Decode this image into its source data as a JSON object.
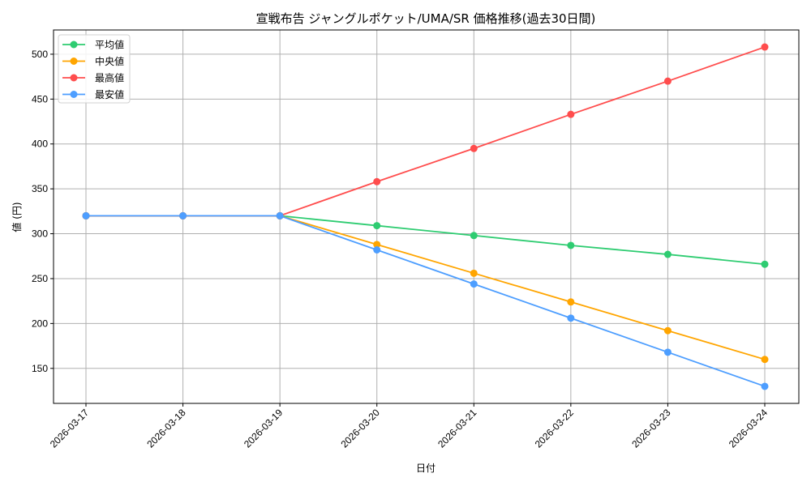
{
  "chart_data": {
    "type": "line",
    "title": "宣戦布告 ジャングルポケット/UMA/SR 価格推移(過去30日間)",
    "xlabel": "日付",
    "ylabel": "値 (円)",
    "x": [
      "2026-03-17",
      "2026-03-18",
      "2026-03-19",
      "2026-03-20",
      "2026-03-21",
      "2026-03-22",
      "2026-03-23",
      "2026-03-24"
    ],
    "series": [
      {
        "name": "平均値",
        "color": "#2ecc71",
        "values": [
          320,
          320,
          320,
          309,
          298,
          287,
          277,
          266
        ]
      },
      {
        "name": "中央値",
        "color": "#ffa500",
        "values": [
          320,
          320,
          320,
          288,
          256,
          224,
          192,
          160
        ]
      },
      {
        "name": "最高値",
        "color": "#ff4d4d",
        "values": [
          320,
          320,
          320,
          358,
          395,
          433,
          470,
          508
        ]
      },
      {
        "name": "最安値",
        "color": "#4d9eff",
        "values": [
          320,
          320,
          320,
          282,
          244,
          206,
          168,
          130
        ]
      }
    ],
    "yticks": [
      150,
      200,
      250,
      300,
      350,
      400,
      450,
      500
    ],
    "ylim": [
      111,
      527
    ],
    "grid": true,
    "legend_position": "upper left",
    "markers": "circle",
    "xtick_rotation": 45
  }
}
